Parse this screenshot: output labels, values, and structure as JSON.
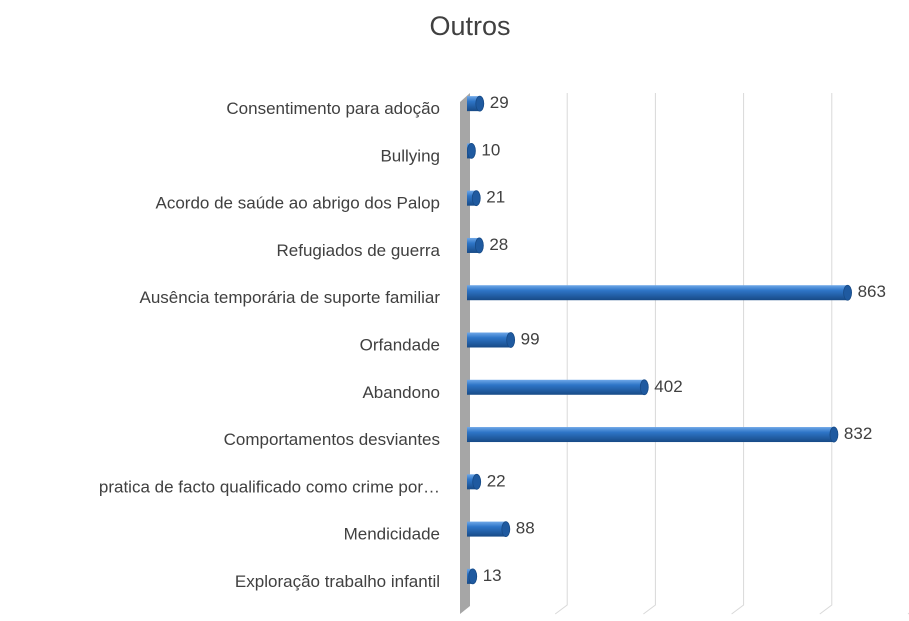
{
  "chart_data": {
    "type": "hbar",
    "title": "Outros",
    "categories": [
      "Consentimento para adoção",
      "Bullying",
      "Acordo de saúde ao abrigo dos Palop",
      "Refugiados de guerra",
      "Ausência temporária de suporte familiar",
      "Orfandade",
      "Abandono",
      "Comportamentos desviantes",
      "pratica de facto qualificado como crime por…",
      "Mendicidade",
      "Exploração trabalho infantil"
    ],
    "values": [
      29,
      10,
      21,
      28,
      863,
      99,
      402,
      832,
      22,
      88,
      13
    ],
    "color": "#2e75c7",
    "xlim": [
      0,
      1000
    ],
    "xticks": [
      0,
      200,
      400,
      600,
      800,
      1000
    ],
    "grid": true
  }
}
